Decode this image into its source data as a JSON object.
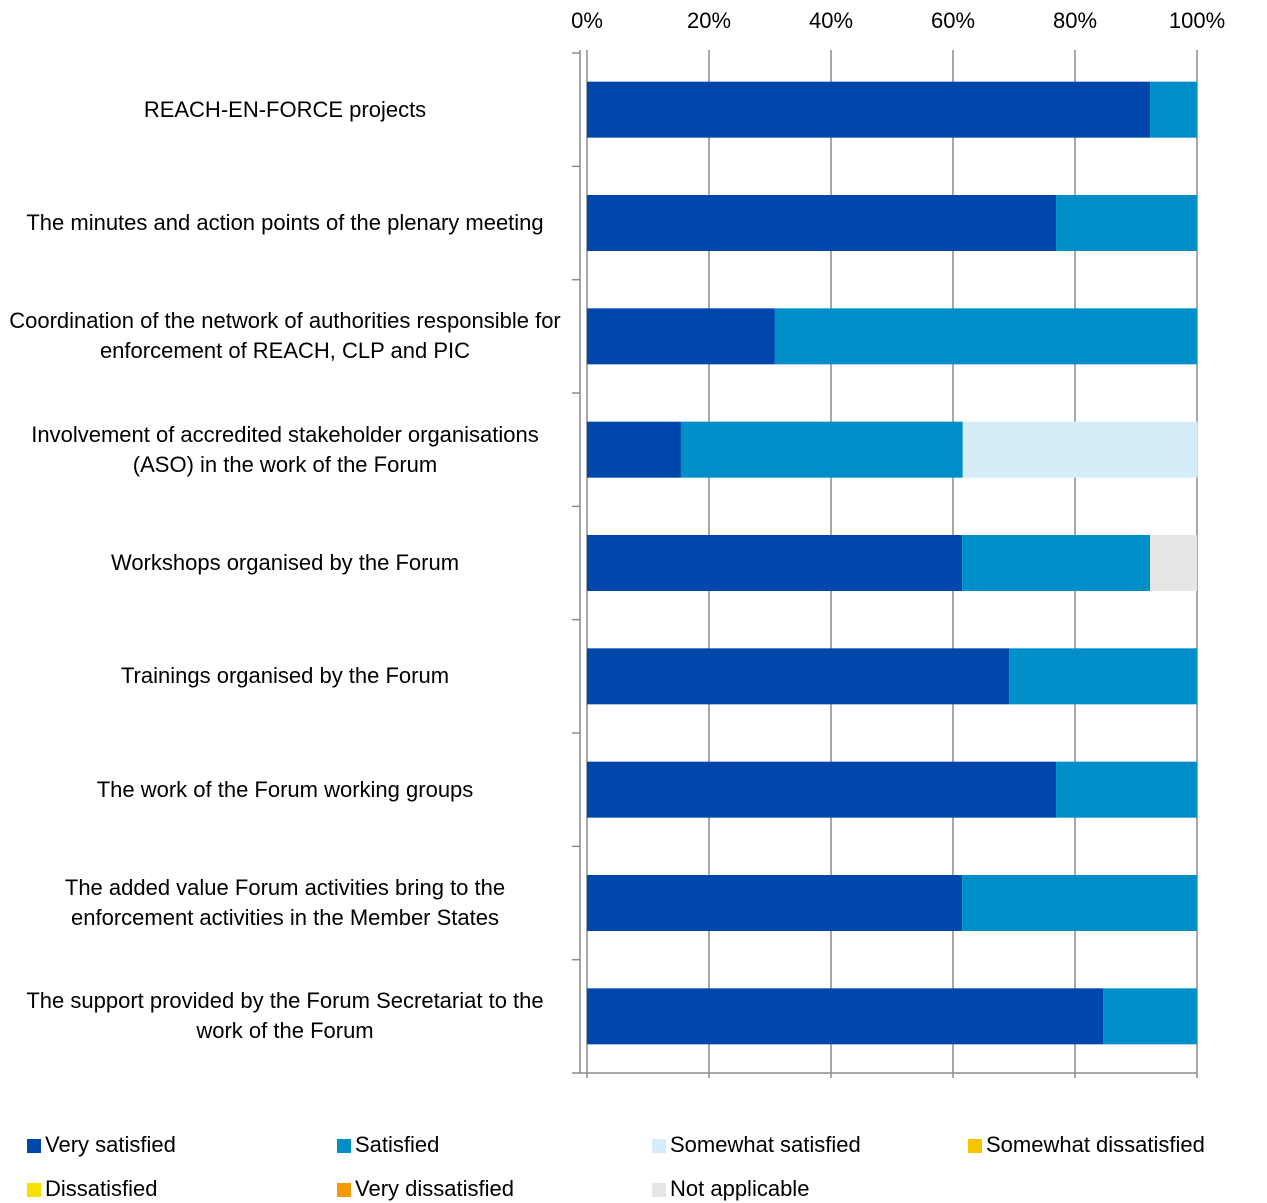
{
  "chart_data": {
    "type": "stacked_bar_horizontal",
    "categories": [
      "REACH-EN-FORCE projects",
      "The minutes and action points of the plenary meeting",
      "Coordination of the network of authorities responsible for enforcement of REACH, CLP and PIC",
      "Involvement of accredited stakeholder organisations (ASO) in the work of the Forum",
      "Workshops organised by the Forum",
      "Trainings organised by the Forum",
      "The work of the Forum working groups",
      "The added value Forum activities bring to the enforcement activities in the Member States",
      "The support provided by the Forum Secretariat to the work of the Forum"
    ],
    "series": [
      {
        "name": "Very satisfied",
        "color": "#0047ab",
        "values": [
          92.3,
          76.9,
          30.8,
          15.4,
          61.5,
          69.2,
          76.9,
          61.5,
          84.6
        ]
      },
      {
        "name": "Satisfied",
        "color": "#008ec8",
        "values": [
          7.7,
          23.1,
          69.2,
          46.2,
          30.8,
          30.8,
          23.1,
          38.5,
          15.4
        ]
      },
      {
        "name": "Somewhat satisfied",
        "color": "#d5edf9",
        "values": [
          0,
          0,
          0,
          38.5,
          0,
          0,
          0,
          0,
          0
        ]
      },
      {
        "name": "Somewhat dissatisfied",
        "color": "#f7c400",
        "values": [
          0,
          0,
          0,
          0,
          0,
          0,
          0,
          0,
          0
        ]
      },
      {
        "name": "Dissatisfied",
        "color": "#f9e000",
        "values": [
          0,
          0,
          0,
          0,
          0,
          0,
          0,
          0,
          0
        ]
      },
      {
        "name": "Very dissatisfied",
        "color": "#f59a00",
        "values": [
          0,
          0,
          0,
          0,
          0,
          0,
          0,
          0,
          0
        ]
      },
      {
        "name": "Not applicable",
        "color": "#e6e6e6",
        "values": [
          0,
          0,
          0,
          0,
          7.7,
          0,
          0,
          0,
          0
        ]
      }
    ],
    "xlim": [
      0,
      100
    ],
    "xticks": [
      {
        "value": 0,
        "label": "0%"
      },
      {
        "value": 20,
        "label": "20%"
      },
      {
        "value": 40,
        "label": "40%"
      },
      {
        "value": 60,
        "label": "60%"
      },
      {
        "value": 80,
        "label": "80%"
      },
      {
        "value": 100,
        "label": "100%"
      }
    ],
    "grid": true,
    "legend": "bottom"
  }
}
